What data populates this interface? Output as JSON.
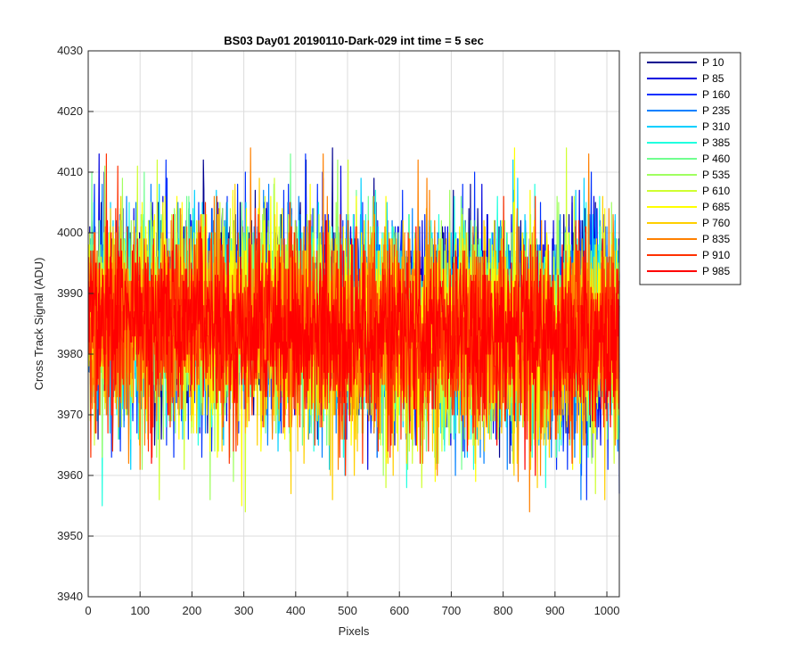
{
  "chart_data": {
    "type": "line",
    "title": "BS03 Day01 20190110-Dark-029 int time = 5 sec",
    "xlabel": "Pixels",
    "ylabel": "Cross Track Signal (ADU)",
    "xlim": [
      0,
      1024
    ],
    "ylim": [
      3940,
      4030
    ],
    "xticks": [
      0,
      100,
      200,
      300,
      400,
      500,
      600,
      700,
      800,
      900,
      1000
    ],
    "yticks": [
      3940,
      3950,
      3960,
      3970,
      3980,
      3990,
      4000,
      4010,
      4020,
      4030
    ],
    "grid": true,
    "legend_position": "outside-right",
    "x_range": [
      1,
      1024
    ],
    "series": [
      {
        "name": "P 10",
        "color": "#00008f",
        "mean": 3986,
        "noise": 8.5
      },
      {
        "name": "P 85",
        "color": "#0000df",
        "mean": 3986,
        "noise": 8.5
      },
      {
        "name": "P 160",
        "color": "#0030ff",
        "mean": 3986,
        "noise": 8.5
      },
      {
        "name": "P 235",
        "color": "#0080ff",
        "mean": 3985,
        "noise": 8.5
      },
      {
        "name": "P 310",
        "color": "#00cfff",
        "mean": 3985,
        "noise": 8.5
      },
      {
        "name": "P 385",
        "color": "#20ffdf",
        "mean": 3985,
        "noise": 8.5
      },
      {
        "name": "P 460",
        "color": "#70ff8f",
        "mean": 3985,
        "noise": 8.5
      },
      {
        "name": "P 535",
        "color": "#a0ff60",
        "mean": 3985,
        "noise": 8.5
      },
      {
        "name": "P 610",
        "color": "#cfff30",
        "mean": 3984,
        "noise": 8.5
      },
      {
        "name": "P 685",
        "color": "#ffff00",
        "mean": 3984,
        "noise": 8.5
      },
      {
        "name": "P 760",
        "color": "#ffcf00",
        "mean": 3984,
        "noise": 8.5
      },
      {
        "name": "P 835",
        "color": "#ff8000",
        "mean": 3984,
        "noise": 8.5
      },
      {
        "name": "P 910",
        "color": "#ff3000",
        "mean": 3984,
        "noise": 8.5
      },
      {
        "name": "P 985",
        "color": "#ff0000",
        "mean": 3984,
        "noise": 7.0
      }
    ]
  }
}
